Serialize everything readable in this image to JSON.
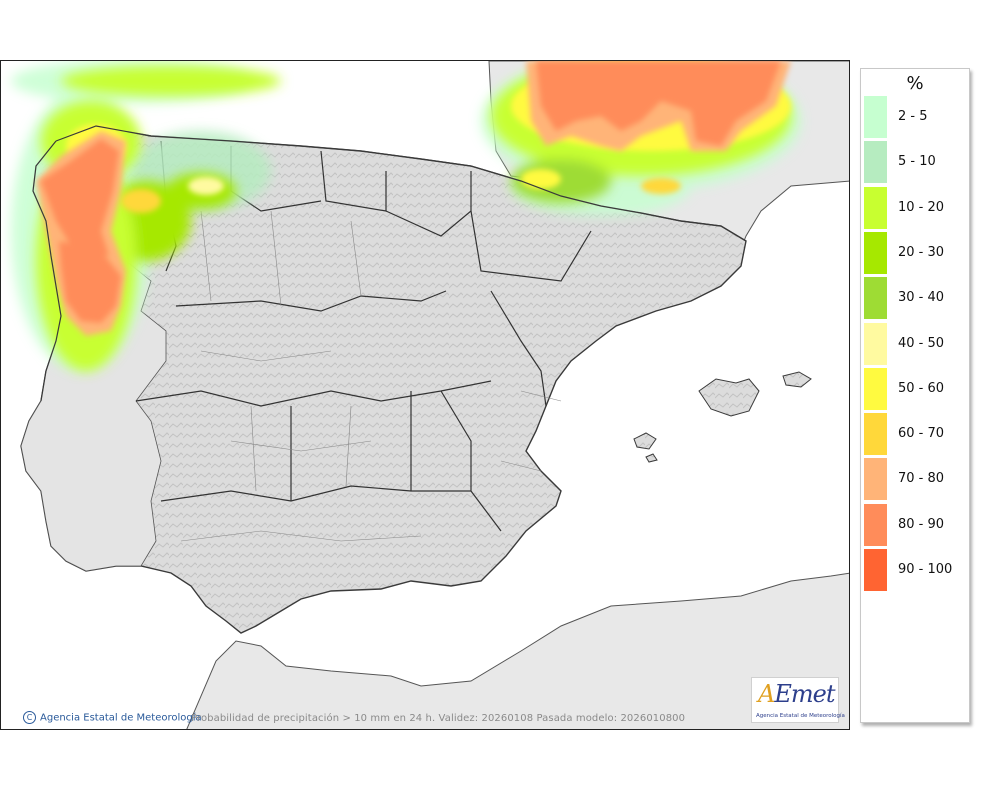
{
  "map": {
    "caption": "Probabilidad de precipitación > 10 mm en 24 h. Validez: 20260108 Pasada modelo: 2026010800",
    "credit": "Agencia Estatal de Meteorología",
    "credit_symbol": "C",
    "logo": {
      "mark_accent": "A",
      "mark_rest": "Emet",
      "subtitle": "Agencia Estatal de Meteorología"
    }
  },
  "legend": {
    "unit": "%",
    "items": [
      {
        "label": "2 - 5",
        "color": "#c6ffd0"
      },
      {
        "label": "5 - 10",
        "color": "#b6ecc0"
      },
      {
        "label": "10 - 20",
        "color": "#c8ff30"
      },
      {
        "label": "20 - 30",
        "color": "#a6e800"
      },
      {
        "label": "30 - 40",
        "color": "#9edc34"
      },
      {
        "label": "40 - 50",
        "color": "#fffaa0"
      },
      {
        "label": "50 - 60",
        "color": "#fffa40"
      },
      {
        "label": "60 - 70",
        "color": "#ffd83a"
      },
      {
        "label": "70 - 80",
        "color": "#ffb478"
      },
      {
        "label": "80 - 90",
        "color": "#ff8c5a"
      },
      {
        "label": "90 - 100",
        "color": "#ff6432"
      }
    ]
  }
}
